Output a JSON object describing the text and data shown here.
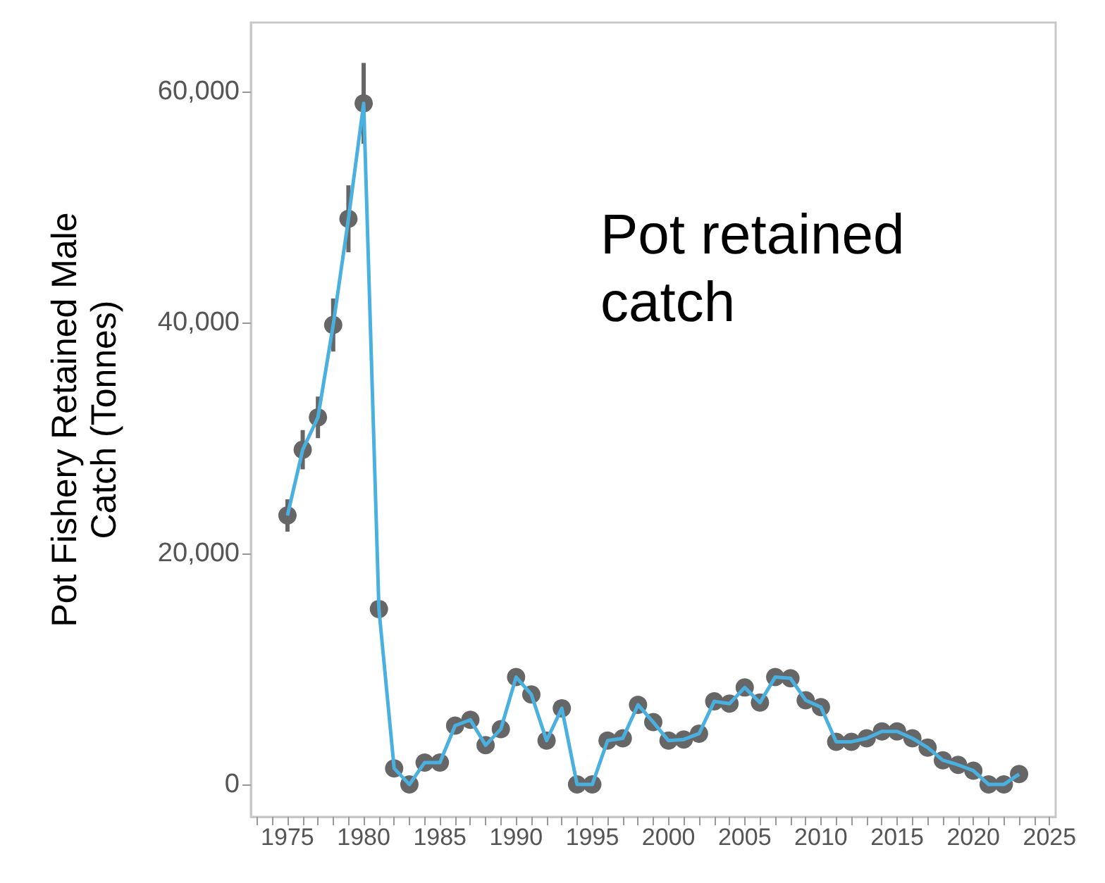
{
  "chart_data": {
    "type": "line",
    "ylabel": "Pot Fishery Retained Male\nCatch (Tonnes)",
    "annotations": [
      "Pot retained\ncatch"
    ],
    "x": [
      1975,
      1976,
      1977,
      1978,
      1979,
      1980,
      1981,
      1982,
      1983,
      1984,
      1985,
      1986,
      1987,
      1988,
      1989,
      1990,
      1991,
      1992,
      1993,
      1994,
      1995,
      1996,
      1997,
      1998,
      1999,
      2000,
      2001,
      2002,
      2003,
      2004,
      2005,
      2006,
      2007,
      2008,
      2009,
      2010,
      2011,
      2012,
      2013,
      2014,
      2015,
      2016,
      2017,
      2018,
      2019,
      2020,
      2021,
      2022,
      2023
    ],
    "series": [
      {
        "type": "scatter",
        "color": "#666666",
        "values": [
          23300,
          29000,
          31800,
          39800,
          49000,
          59000,
          15200,
          1400,
          0,
          1900,
          1900,
          5100,
          5600,
          3400,
          4800,
          9300,
          7800,
          3800,
          6600,
          0,
          0,
          3800,
          4000,
          6900,
          5400,
          3800,
          3900,
          4400,
          7200,
          7000,
          8400,
          7100,
          9300,
          9200,
          7300,
          6700,
          3700,
          3700,
          4000,
          4600,
          4600,
          4000,
          3200,
          2100,
          1700,
          1200,
          0,
          0,
          900
        ],
        "errors": [
          1400,
          1700,
          1800,
          2300,
          2900,
          3500,
          null,
          null,
          null,
          null,
          null,
          null,
          null,
          null,
          null,
          null,
          null,
          null,
          null,
          null,
          null,
          null,
          null,
          null,
          null,
          null,
          null,
          null,
          null,
          null,
          null,
          null,
          null,
          null,
          null,
          null,
          null,
          null,
          null,
          null,
          null,
          null,
          null,
          null,
          null,
          null,
          null,
          null,
          null
        ]
      },
      {
        "marker": "none",
        "color": "#4ab0e0",
        "values": [
          23300,
          29000,
          31800,
          39800,
          49000,
          59000,
          15200,
          1400,
          0,
          1900,
          1900,
          5100,
          5600,
          3400,
          4800,
          9300,
          7800,
          3800,
          6600,
          0,
          0,
          3800,
          4000,
          6900,
          5400,
          3800,
          3900,
          4400,
          7200,
          7000,
          8400,
          7100,
          9300,
          9200,
          7300,
          6700,
          3700,
          3700,
          4000,
          4600,
          4600,
          4000,
          3200,
          2100,
          1700,
          1200,
          0,
          0,
          900
        ]
      }
    ],
    "xlim": [
      1972.6,
      2025.4
    ],
    "xticks": [
      {
        "value": 1973,
        "label": null
      },
      {
        "value": 1974,
        "label": null
      },
      1975,
      {
        "value": 1976,
        "label": null
      },
      {
        "value": 1977,
        "label": null
      },
      {
        "value": 1978,
        "label": null
      },
      {
        "value": 1979,
        "label": null
      },
      1980,
      {
        "value": 1981,
        "label": null
      },
      {
        "value": 1982,
        "label": null
      },
      {
        "value": 1983,
        "label": null
      },
      {
        "value": 1984,
        "label": null
      },
      1985,
      {
        "value": 1986,
        "label": null
      },
      {
        "value": 1987,
        "label": null
      },
      {
        "value": 1988,
        "label": null
      },
      {
        "value": 1989,
        "label": null
      },
      1990,
      {
        "value": 1991,
        "label": null
      },
      {
        "value": 1992,
        "label": null
      },
      {
        "value": 1993,
        "label": null
      },
      {
        "value": 1994,
        "label": null
      },
      1995,
      {
        "value": 1996,
        "label": null
      },
      {
        "value": 1997,
        "label": null
      },
      {
        "value": 1998,
        "label": null
      },
      {
        "value": 1999,
        "label": null
      },
      2000,
      {
        "value": 2001,
        "label": null
      },
      {
        "value": 2002,
        "label": null
      },
      {
        "value": 2003,
        "label": null
      },
      {
        "value": 2004,
        "label": null
      },
      2005,
      {
        "value": 2006,
        "label": null
      },
      {
        "value": 2007,
        "label": null
      },
      {
        "value": 2008,
        "label": null
      },
      {
        "value": 2009,
        "label": null
      },
      2010,
      {
        "value": 2011,
        "label": null
      },
      {
        "value": 2012,
        "label": null
      },
      {
        "value": 2013,
        "label": null
      },
      {
        "value": 2014,
        "label": null
      },
      2015,
      {
        "value": 2016,
        "label": null
      },
      {
        "value": 2017,
        "label": null
      },
      {
        "value": 2018,
        "label": null
      },
      {
        "value": 2019,
        "label": null
      },
      2020,
      {
        "value": 2021,
        "label": null
      },
      {
        "value": 2022,
        "label": null
      },
      {
        "value": 2023,
        "label": null
      },
      {
        "value": 2024,
        "label": null
      },
      2025
    ],
    "ylim": [
      -2800,
      66000
    ],
    "yticks": [
      {
        "value": 0,
        "label": "0"
      },
      {
        "value": 20000,
        "label": "20,000"
      },
      {
        "value": 40000,
        "label": "40,000"
      },
      {
        "value": 60000,
        "label": "60,000"
      }
    ],
    "grid": false,
    "marker": "circle",
    "line_style": "solid"
  }
}
